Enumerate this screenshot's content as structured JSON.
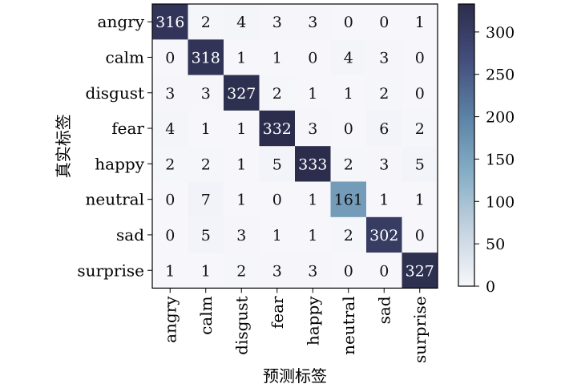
{
  "chart_data": {
    "type": "heatmap",
    "title": "",
    "xlabel": "预测标签",
    "ylabel": "真实标签",
    "x_categories": [
      "angry",
      "calm",
      "disgust",
      "fear",
      "happy",
      "neutral",
      "sad",
      "surprise"
    ],
    "y_categories": [
      "angry",
      "calm",
      "disgust",
      "fear",
      "happy",
      "neutral",
      "sad",
      "surprise"
    ],
    "values": [
      [
        316,
        2,
        4,
        3,
        3,
        0,
        0,
        1
      ],
      [
        0,
        318,
        1,
        1,
        0,
        4,
        3,
        0
      ],
      [
        3,
        3,
        327,
        2,
        1,
        1,
        2,
        0
      ],
      [
        4,
        1,
        1,
        332,
        3,
        0,
        6,
        2
      ],
      [
        2,
        2,
        1,
        5,
        333,
        2,
        3,
        5
      ],
      [
        0,
        7,
        1,
        0,
        1,
        161,
        1,
        1
      ],
      [
        0,
        5,
        3,
        1,
        1,
        2,
        302,
        0
      ],
      [
        1,
        1,
        2,
        3,
        3,
        0,
        0,
        327
      ]
    ],
    "value_range": [
      0,
      333
    ],
    "colorbar_ticks": [
      0,
      50,
      100,
      150,
      200,
      250,
      300
    ],
    "colormap": [
      "#f7f7fb",
      "#c4d3e1",
      "#86aec6",
      "#5c82a6",
      "#444e7d",
      "#2c2d4c"
    ]
  }
}
